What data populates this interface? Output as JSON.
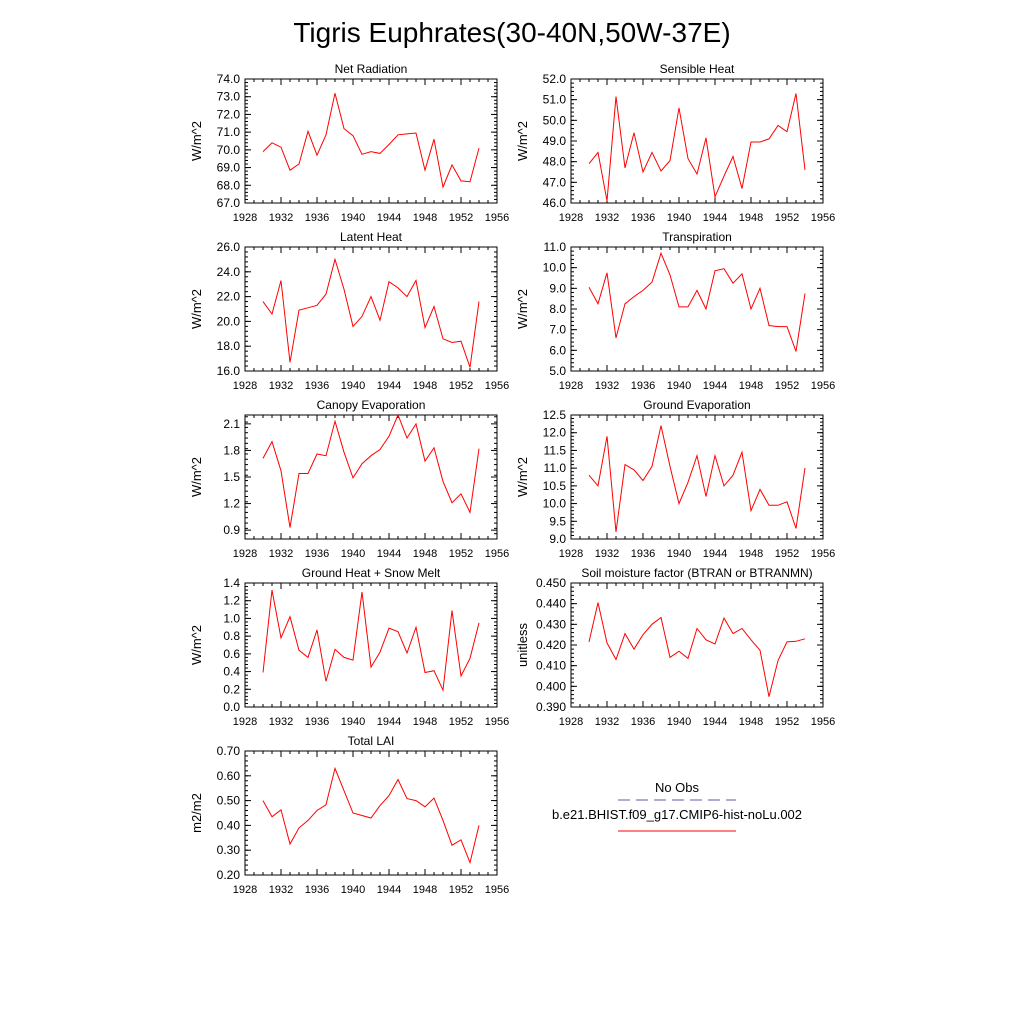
{
  "figure": {
    "title": "Tigris Euphrates(30-40N,50W-37E)"
  },
  "legend": {
    "obs_label": "No Obs",
    "model_label": "b.e21.BHIST.f09_g17.CMIP6-hist-noLu.002",
    "obs_color": "#5a5aa8",
    "model_color": "#ff0000"
  },
  "chart_data": [
    {
      "type": "line",
      "title": "Net Radiation",
      "ylabel": "W/m^2",
      "xlim": [
        1928,
        1956
      ],
      "ylim": [
        67.0,
        74.0
      ],
      "xticks": [
        "1928",
        "1932",
        "1936",
        "1940",
        "1944",
        "1948",
        "1952",
        "1956"
      ],
      "yticks": [
        "67.0",
        "68.0",
        "69.0",
        "70.0",
        "71.0",
        "72.0",
        "73.0",
        "74.0"
      ],
      "x": [
        1930,
        1931,
        1932,
        1933,
        1934,
        1935,
        1936,
        1937,
        1938,
        1939,
        1940,
        1941,
        1942,
        1943,
        1944,
        1945,
        1946,
        1947,
        1948,
        1949,
        1950,
        1951,
        1952,
        1953,
        1954
      ],
      "series": [
        {
          "values": [
            69.9,
            70.4,
            70.15,
            68.85,
            69.2,
            71.05,
            69.7,
            70.85,
            73.2,
            71.2,
            70.8,
            69.75,
            69.9,
            69.8,
            70.3,
            70.85,
            70.9,
            70.95,
            68.85,
            70.6,
            67.9,
            69.15,
            68.25,
            68.2,
            70.1
          ]
        }
      ]
    },
    {
      "type": "line",
      "title": "Sensible Heat",
      "ylabel": "W/m^2",
      "xlim": [
        1928,
        1956
      ],
      "ylim": [
        46.0,
        52.0
      ],
      "xticks": [
        "1928",
        "1932",
        "1936",
        "1940",
        "1944",
        "1948",
        "1952",
        "1956"
      ],
      "yticks": [
        "46.0",
        "47.0",
        "48.0",
        "49.0",
        "50.0",
        "51.0",
        "52.0"
      ],
      "x": [
        1930,
        1931,
        1932,
        1933,
        1934,
        1935,
        1936,
        1937,
        1938,
        1939,
        1940,
        1941,
        1942,
        1943,
        1944,
        1945,
        1946,
        1947,
        1948,
        1949,
        1950,
        1951,
        1952,
        1953,
        1954
      ],
      "series": [
        {
          "values": [
            47.9,
            48.45,
            46.1,
            51.15,
            47.7,
            49.4,
            47.5,
            48.45,
            47.55,
            48.05,
            50.6,
            48.15,
            47.4,
            49.15,
            46.3,
            47.3,
            48.25,
            46.7,
            48.95,
            48.95,
            49.1,
            49.75,
            49.45,
            51.3,
            47.6
          ]
        }
      ]
    },
    {
      "type": "line",
      "title": "Latent Heat",
      "ylabel": "W/m^2",
      "xlim": [
        1928,
        1956
      ],
      "ylim": [
        16.0,
        26.0
      ],
      "xticks": [
        "1928",
        "1932",
        "1936",
        "1940",
        "1944",
        "1948",
        "1952",
        "1956"
      ],
      "yticks": [
        "16.0",
        "18.0",
        "20.0",
        "22.0",
        "24.0",
        "26.0"
      ],
      "x": [
        1930,
        1931,
        1932,
        1933,
        1934,
        1935,
        1936,
        1937,
        1938,
        1939,
        1940,
        1941,
        1942,
        1943,
        1944,
        1945,
        1946,
        1947,
        1948,
        1949,
        1950,
        1951,
        1952,
        1953,
        1954
      ],
      "series": [
        {
          "values": [
            21.6,
            20.6,
            23.3,
            16.7,
            20.9,
            21.1,
            21.3,
            22.2,
            25.0,
            22.6,
            19.6,
            20.4,
            22.0,
            20.1,
            23.2,
            22.7,
            22.0,
            23.3,
            19.5,
            21.2,
            18.6,
            18.3,
            18.4,
            16.3,
            21.6
          ]
        }
      ]
    },
    {
      "type": "line",
      "title": "Transpiration",
      "ylabel": "W/m^2",
      "xlim": [
        1928,
        1956
      ],
      "ylim": [
        5.0,
        11.0
      ],
      "xticks": [
        "1928",
        "1932",
        "1936",
        "1940",
        "1944",
        "1948",
        "1952",
        "1956"
      ],
      "yticks": [
        "5.0",
        "6.0",
        "7.0",
        "8.0",
        "9.0",
        "10.0",
        "11.0"
      ],
      "x": [
        1930,
        1931,
        1932,
        1933,
        1934,
        1935,
        1936,
        1937,
        1938,
        1939,
        1940,
        1941,
        1942,
        1943,
        1944,
        1945,
        1946,
        1947,
        1948,
        1949,
        1950,
        1951,
        1952,
        1953,
        1954
      ],
      "series": [
        {
          "values": [
            9.05,
            8.25,
            9.75,
            6.6,
            8.25,
            8.6,
            8.9,
            9.3,
            10.7,
            9.65,
            8.1,
            8.1,
            8.9,
            8.0,
            9.85,
            9.95,
            9.25,
            9.7,
            8.0,
            9.0,
            7.2,
            7.15,
            7.15,
            5.95,
            8.75
          ]
        }
      ]
    },
    {
      "type": "line",
      "title": "Canopy Evaporation",
      "ylabel": "W/m^2",
      "xlim": [
        1928,
        1956
      ],
      "ylim": [
        0.8,
        2.2
      ],
      "xticks": [
        "1928",
        "1932",
        "1936",
        "1940",
        "1944",
        "1948",
        "1952",
        "1956"
      ],
      "yticks": [
        "0.9",
        "1.2",
        "1.5",
        "1.8",
        "2.1"
      ],
      "x": [
        1930,
        1931,
        1932,
        1933,
        1934,
        1935,
        1936,
        1937,
        1938,
        1939,
        1940,
        1941,
        1942,
        1943,
        1944,
        1945,
        1946,
        1947,
        1948,
        1949,
        1950,
        1951,
        1952,
        1953,
        1954
      ],
      "series": [
        {
          "values": [
            1.71,
            1.9,
            1.57,
            0.93,
            1.54,
            1.54,
            1.76,
            1.74,
            2.13,
            1.78,
            1.49,
            1.65,
            1.74,
            1.81,
            1.96,
            2.2,
            1.94,
            2.1,
            1.68,
            1.83,
            1.45,
            1.21,
            1.31,
            1.1,
            1.82
          ]
        }
      ]
    },
    {
      "type": "line",
      "title": "Ground Evaporation",
      "ylabel": "W/m^2",
      "xlim": [
        1928,
        1956
      ],
      "ylim": [
        9.0,
        12.5
      ],
      "xticks": [
        "1928",
        "1932",
        "1936",
        "1940",
        "1944",
        "1948",
        "1952",
        "1956"
      ],
      "yticks": [
        "9.0",
        "9.5",
        "10.0",
        "10.5",
        "11.0",
        "11.5",
        "12.0",
        "12.5"
      ],
      "x": [
        1930,
        1931,
        1932,
        1933,
        1934,
        1935,
        1936,
        1937,
        1938,
        1939,
        1940,
        1941,
        1942,
        1943,
        1944,
        1945,
        1946,
        1947,
        1948,
        1949,
        1950,
        1951,
        1952,
        1953,
        1954
      ],
      "series": [
        {
          "values": [
            10.8,
            10.5,
            11.9,
            9.2,
            11.1,
            10.95,
            10.65,
            11.05,
            12.2,
            11.05,
            10.0,
            10.6,
            11.35,
            10.2,
            11.35,
            10.5,
            10.8,
            11.45,
            9.8,
            10.4,
            9.95,
            9.95,
            10.05,
            9.3,
            11.0
          ]
        }
      ]
    },
    {
      "type": "line",
      "title": "Ground Heat + Snow Melt",
      "ylabel": "W/m^2",
      "xlim": [
        1928,
        1956
      ],
      "ylim": [
        0.0,
        1.4
      ],
      "xticks": [
        "1928",
        "1932",
        "1936",
        "1940",
        "1944",
        "1948",
        "1952",
        "1956"
      ],
      "yticks": [
        "0.0",
        "0.2",
        "0.4",
        "0.6",
        "0.8",
        "1.0",
        "1.2",
        "1.4"
      ],
      "x": [
        1930,
        1931,
        1932,
        1933,
        1934,
        1935,
        1936,
        1937,
        1938,
        1939,
        1940,
        1941,
        1942,
        1943,
        1944,
        1945,
        1946,
        1947,
        1948,
        1949,
        1950,
        1951,
        1952,
        1953,
        1954
      ],
      "series": [
        {
          "values": [
            0.39,
            1.32,
            0.78,
            1.02,
            0.64,
            0.56,
            0.87,
            0.29,
            0.65,
            0.56,
            0.53,
            1.3,
            0.45,
            0.62,
            0.89,
            0.85,
            0.61,
            0.9,
            0.39,
            0.41,
            0.19,
            1.09,
            0.35,
            0.55,
            0.95
          ]
        }
      ]
    },
    {
      "type": "line",
      "title": "Soil moisture factor (BTRAN or BTRANMN)",
      "ylabel": "unitless",
      "xlim": [
        1928,
        1956
      ],
      "ylim": [
        0.39,
        0.45
      ],
      "xticks": [
        "1928",
        "1932",
        "1936",
        "1940",
        "1944",
        "1948",
        "1952",
        "1956"
      ],
      "yticks": [
        "0.390",
        "0.400",
        "0.410",
        "0.420",
        "0.430",
        "0.440",
        "0.450"
      ],
      "x": [
        1930,
        1931,
        1932,
        1933,
        1934,
        1935,
        1936,
        1937,
        1938,
        1939,
        1940,
        1941,
        1942,
        1943,
        1944,
        1945,
        1946,
        1947,
        1948,
        1949,
        1950,
        1951,
        1952,
        1953,
        1954
      ],
      "series": [
        {
          "values": [
            0.4215,
            0.4405,
            0.421,
            0.413,
            0.4255,
            0.418,
            0.425,
            0.43,
            0.4333,
            0.414,
            0.417,
            0.4135,
            0.428,
            0.4225,
            0.4205,
            0.433,
            0.4255,
            0.428,
            0.4225,
            0.4175,
            0.395,
            0.4125,
            0.4215,
            0.4218,
            0.423
          ]
        }
      ]
    },
    {
      "type": "line",
      "title": "Total LAI",
      "ylabel": "m2/m2",
      "xlim": [
        1928,
        1956
      ],
      "ylim": [
        0.2,
        0.7
      ],
      "xticks": [
        "1928",
        "1932",
        "1936",
        "1940",
        "1944",
        "1948",
        "1952",
        "1956"
      ],
      "yticks": [
        "0.20",
        "0.30",
        "0.40",
        "0.50",
        "0.60",
        "0.70"
      ],
      "x": [
        1930,
        1931,
        1932,
        1933,
        1934,
        1935,
        1936,
        1937,
        1938,
        1939,
        1940,
        1941,
        1942,
        1943,
        1944,
        1945,
        1946,
        1947,
        1948,
        1949,
        1950,
        1951,
        1952,
        1953,
        1954
      ],
      "series": [
        {
          "values": [
            0.5,
            0.435,
            0.463,
            0.325,
            0.39,
            0.42,
            0.46,
            0.483,
            0.63,
            0.54,
            0.45,
            0.44,
            0.43,
            0.48,
            0.52,
            0.585,
            0.508,
            0.5,
            0.475,
            0.51,
            0.42,
            0.32,
            0.342,
            0.25,
            0.4
          ]
        }
      ]
    }
  ]
}
